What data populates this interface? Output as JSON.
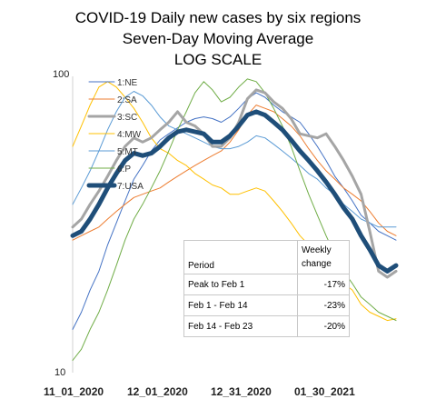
{
  "chart_data": {
    "type": "line",
    "title": "COVID-19 Daily new cases by six regions",
    "subtitle": "Seven-Day Moving Average",
    "scale_note": "LOG SCALE",
    "y_scale": "log",
    "ylim": [
      10,
      100
    ],
    "y_ticks": [
      "100",
      "10"
    ],
    "x_tick_labels": [
      "11_01_2020",
      "12_01_2020",
      "12_31_2020",
      "01_30_2021"
    ],
    "grid": false,
    "legend_position": "top-left",
    "series": [
      {
        "name": "1:NE",
        "color": "#4472c4",
        "width": 1,
        "values": [
          14,
          16,
          19,
          22,
          27,
          32,
          38,
          45,
          50,
          56,
          61,
          64,
          67,
          70,
          72,
          73,
          72,
          70,
          73,
          78,
          84,
          88,
          85,
          80,
          76,
          73,
          70,
          64,
          58,
          52,
          46,
          42,
          38,
          34,
          32,
          30,
          29,
          28
        ]
      },
      {
        "name": "2:SA",
        "color": "#ed7d31",
        "width": 1,
        "values": [
          28,
          29,
          30,
          31,
          33,
          35,
          37,
          39,
          40,
          41,
          42,
          44,
          46,
          48,
          50,
          52,
          54,
          56,
          60,
          66,
          74,
          80,
          78,
          76,
          72,
          68,
          63,
          57,
          52,
          48,
          45,
          42,
          40,
          38,
          35,
          32,
          30,
          29
        ]
      },
      {
        "name": "3:SC",
        "color": "#a5a5a5",
        "width": 3,
        "values": [
          31,
          33,
          37,
          41,
          46,
          52,
          58,
          62,
          60,
          62,
          66,
          70,
          76,
          70,
          68,
          64,
          58,
          58,
          62,
          70,
          84,
          90,
          88,
          82,
          78,
          72,
          64,
          63,
          62,
          64,
          58,
          52,
          46,
          40,
          30,
          22,
          21,
          22
        ]
      },
      {
        "name": "4:MW",
        "color": "#ffc000",
        "width": 1,
        "values": [
          58,
          68,
          80,
          92,
          96,
          92,
          85,
          78,
          70,
          62,
          57,
          55,
          52,
          50,
          47,
          45,
          43,
          42,
          40,
          40,
          41,
          42,
          41,
          38,
          35,
          32,
          29,
          27,
          25,
          23,
          21,
          20,
          19,
          17,
          16,
          15.5,
          15,
          15.2
        ]
      },
      {
        "name": "5:MT",
        "color": "#5b9bd5",
        "width": 1,
        "values": [
          37,
          42,
          48,
          56,
          66,
          76,
          85,
          89,
          86,
          80,
          73,
          68,
          66,
          64,
          62,
          60,
          58,
          57,
          57,
          58,
          60,
          63,
          62,
          59,
          56,
          53,
          50,
          47,
          45,
          42,
          40,
          37,
          35,
          33,
          32,
          31,
          31,
          31
        ]
      },
      {
        "name": "6:P",
        "color": "#70ad47",
        "width": 1,
        "values": [
          11,
          12,
          14,
          16,
          19,
          23,
          28,
          33,
          37,
          42,
          48,
          56,
          66,
          76,
          88,
          96,
          90,
          82,
          85,
          92,
          98,
          96,
          88,
          78,
          68,
          58,
          48,
          40,
          34,
          29,
          25,
          22,
          20,
          18,
          17,
          16,
          15.5,
          15
        ]
      },
      {
        "name": "7:USA",
        "color": "#1f4e79",
        "width": 5,
        "values": [
          29,
          30,
          33,
          37,
          42,
          47,
          52,
          55,
          54,
          55,
          58,
          62,
          65,
          66,
          65,
          64,
          60,
          60,
          63,
          68,
          74,
          76,
          74,
          70,
          66,
          61,
          56,
          52,
          48,
          44,
          40,
          36,
          33,
          29,
          26,
          23,
          22,
          23
        ]
      }
    ],
    "table": {
      "header": {
        "col1": "Period",
        "col2_line1": "Weekly",
        "col2_line2": "change"
      },
      "rows": [
        {
          "period": "Peak to Feb 1",
          "change": "-17%"
        },
        {
          "period": "Feb 1 - Feb 14",
          "change": "-23%"
        },
        {
          "period": "Feb 14 - Feb 23",
          "change": "-20%"
        }
      ]
    }
  }
}
